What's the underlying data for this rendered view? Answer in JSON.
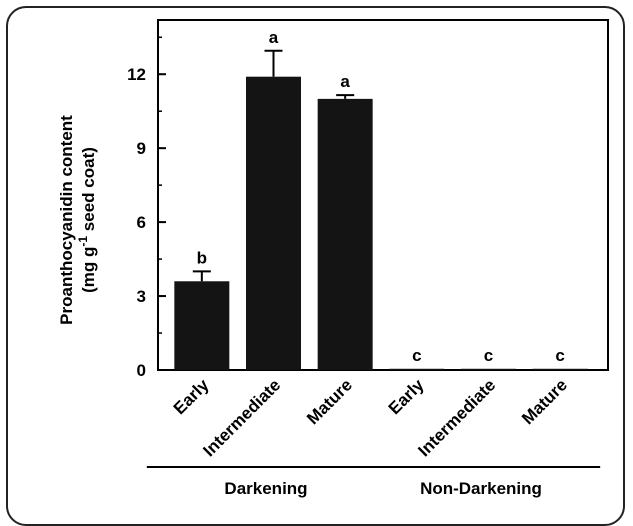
{
  "chart_data": {
    "type": "bar",
    "categories": [
      "Early",
      "Intermediate",
      "Mature",
      "Early",
      "Intermediate",
      "Mature"
    ],
    "values": [
      3.6,
      11.9,
      11.0,
      0.05,
      0.05,
      0.05
    ],
    "errors": [
      0.4,
      1.05,
      0.15,
      0,
      0,
      0
    ],
    "significance": [
      "b",
      "a",
      "a",
      "c",
      "c",
      "c"
    ],
    "groups": [
      {
        "name": "Darkening",
        "categories": [
          0,
          1,
          2
        ]
      },
      {
        "name": "Non-Darkening",
        "categories": [
          3,
          4,
          5
        ]
      }
    ],
    "title": "",
    "xlabel": "",
    "ylabel_line1": "Proanthocyanidin content",
    "ylabel_line2_prefix": "(mg  g",
    "ylabel_line2_sup": "-1",
    "ylabel_line2_suffix": " seed coat)",
    "ylim": [
      0,
      14.2
    ],
    "yticks": [
      0,
      3,
      6,
      9,
      12
    ],
    "yticks_minor_step": 1.5,
    "bar_color": "#141414",
    "grid": false
  }
}
